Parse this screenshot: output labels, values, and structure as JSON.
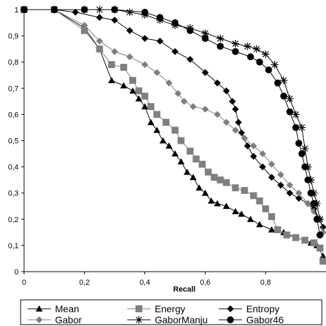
{
  "chart_data": {
    "type": "line",
    "title": "",
    "xlabel": "Recall",
    "ylabel": "",
    "xlim": [
      0,
      1
    ],
    "ylim": [
      0,
      1
    ],
    "x_tick_labels": [
      "0",
      "0,2",
      "0,4",
      "0,6",
      "0,8"
    ],
    "x_tick_values": [
      0,
      0.2,
      0.4,
      0.6,
      0.8
    ],
    "y_tick_labels": [
      "0",
      "0,1",
      "0,2",
      "0,3",
      "0,4",
      "0,5",
      "0,6",
      "0,7",
      "0,8",
      "0,9",
      "1"
    ],
    "y_tick_values": [
      0,
      0.1,
      0.2,
      0.3,
      0.4,
      0.5,
      0.6,
      0.7,
      0.8,
      0.9,
      1.0
    ],
    "grid": false,
    "legend_position": "bottom",
    "series": [
      {
        "name": "Mean",
        "marker": "triangle",
        "color": "#000000",
        "points": [
          [
            0,
            1
          ],
          [
            0.1,
            1
          ],
          [
            0.2,
            0.93
          ],
          [
            0.25,
            0.85
          ],
          [
            0.29,
            0.73
          ],
          [
            0.33,
            0.71
          ],
          [
            0.36,
            0.69
          ],
          [
            0.38,
            0.66
          ],
          [
            0.4,
            0.63
          ],
          [
            0.42,
            0.57
          ],
          [
            0.44,
            0.54
          ],
          [
            0.46,
            0.5
          ],
          [
            0.48,
            0.48
          ],
          [
            0.5,
            0.45
          ],
          [
            0.52,
            0.42
          ],
          [
            0.54,
            0.38
          ],
          [
            0.56,
            0.36
          ],
          [
            0.58,
            0.32
          ],
          [
            0.6,
            0.3
          ],
          [
            0.62,
            0.27
          ],
          [
            0.64,
            0.26
          ],
          [
            0.67,
            0.25
          ],
          [
            0.7,
            0.23
          ],
          [
            0.72,
            0.22
          ],
          [
            0.75,
            0.2
          ],
          [
            0.78,
            0.18
          ],
          [
            0.82,
            0.16
          ],
          [
            0.86,
            0.15
          ],
          [
            0.9,
            0.13
          ],
          [
            0.93,
            0.12
          ],
          [
            0.95,
            0.11
          ],
          [
            0.97,
            0.1
          ],
          [
            0.99,
            0.06
          ]
        ]
      },
      {
        "name": "Energy",
        "marker": "square",
        "color": "#7f7f7f",
        "points": [
          [
            0,
            1
          ],
          [
            0.1,
            1
          ],
          [
            0.2,
            0.92
          ],
          [
            0.25,
            0.85
          ],
          [
            0.29,
            0.79
          ],
          [
            0.33,
            0.78
          ],
          [
            0.36,
            0.73
          ],
          [
            0.38,
            0.69
          ],
          [
            0.4,
            0.67
          ],
          [
            0.42,
            0.63
          ],
          [
            0.44,
            0.6
          ],
          [
            0.47,
            0.57
          ],
          [
            0.5,
            0.54
          ],
          [
            0.52,
            0.5
          ],
          [
            0.55,
            0.46
          ],
          [
            0.57,
            0.43
          ],
          [
            0.59,
            0.41
          ],
          [
            0.61,
            0.38
          ],
          [
            0.63,
            0.36
          ],
          [
            0.65,
            0.35
          ],
          [
            0.67,
            0.34
          ],
          [
            0.7,
            0.32
          ],
          [
            0.73,
            0.31
          ],
          [
            0.76,
            0.29
          ],
          [
            0.78,
            0.27
          ],
          [
            0.8,
            0.24
          ],
          [
            0.82,
            0.21
          ],
          [
            0.84,
            0.16
          ],
          [
            0.87,
            0.14
          ],
          [
            0.9,
            0.13
          ],
          [
            0.93,
            0.12
          ],
          [
            0.96,
            0.11
          ],
          [
            0.98,
            0.09
          ],
          [
            0.99,
            0.04
          ]
        ]
      },
      {
        "name": "Entropy",
        "marker": "diamond",
        "color": "#000000",
        "points": [
          [
            0,
            1
          ],
          [
            0.1,
            1
          ],
          [
            0.17,
            0.99
          ],
          [
            0.25,
            0.97
          ],
          [
            0.3,
            0.96
          ],
          [
            0.35,
            0.92
          ],
          [
            0.4,
            0.89
          ],
          [
            0.45,
            0.88
          ],
          [
            0.5,
            0.84
          ],
          [
            0.55,
            0.81
          ],
          [
            0.6,
            0.76
          ],
          [
            0.64,
            0.72
          ],
          [
            0.67,
            0.69
          ],
          [
            0.69,
            0.65
          ],
          [
            0.7,
            0.62
          ],
          [
            0.71,
            0.57
          ],
          [
            0.72,
            0.53
          ],
          [
            0.74,
            0.48
          ],
          [
            0.76,
            0.44
          ],
          [
            0.79,
            0.4
          ],
          [
            0.82,
            0.36
          ],
          [
            0.85,
            0.33
          ],
          [
            0.88,
            0.3
          ],
          [
            0.91,
            0.28
          ],
          [
            0.94,
            0.26
          ],
          [
            0.96,
            0.24
          ],
          [
            0.98,
            0.2
          ],
          [
            0.99,
            0.17
          ]
        ]
      },
      {
        "name": "Gabor",
        "marker": "diamond",
        "color": "#7f7f7f",
        "points": [
          [
            0,
            1
          ],
          [
            0.1,
            1
          ],
          [
            0.2,
            0.94
          ],
          [
            0.25,
            0.88
          ],
          [
            0.3,
            0.84
          ],
          [
            0.35,
            0.82
          ],
          [
            0.4,
            0.79
          ],
          [
            0.44,
            0.76
          ],
          [
            0.48,
            0.72
          ],
          [
            0.51,
            0.68
          ],
          [
            0.53,
            0.65
          ],
          [
            0.56,
            0.63
          ],
          [
            0.6,
            0.62
          ],
          [
            0.64,
            0.6
          ],
          [
            0.67,
            0.57
          ],
          [
            0.7,
            0.54
          ],
          [
            0.73,
            0.51
          ],
          [
            0.76,
            0.48
          ],
          [
            0.79,
            0.45
          ],
          [
            0.82,
            0.41
          ],
          [
            0.85,
            0.37
          ],
          [
            0.88,
            0.33
          ],
          [
            0.91,
            0.3
          ],
          [
            0.94,
            0.26
          ],
          [
            0.96,
            0.23
          ],
          [
            0.98,
            0.2
          ],
          [
            0.99,
            0.15
          ]
        ]
      },
      {
        "name": "GaborManju",
        "marker": "star",
        "color": "#000000",
        "points": [
          [
            0,
            1
          ],
          [
            0.1,
            1
          ],
          [
            0.2,
            1
          ],
          [
            0.25,
            1
          ],
          [
            0.3,
            1
          ],
          [
            0.35,
            0.99
          ],
          [
            0.4,
            0.98
          ],
          [
            0.45,
            0.96
          ],
          [
            0.5,
            0.94
          ],
          [
            0.55,
            0.93
          ],
          [
            0.6,
            0.91
          ],
          [
            0.65,
            0.89
          ],
          [
            0.7,
            0.87
          ],
          [
            0.74,
            0.86
          ],
          [
            0.77,
            0.85
          ],
          [
            0.8,
            0.83
          ],
          [
            0.83,
            0.79
          ],
          [
            0.86,
            0.73
          ],
          [
            0.88,
            0.66
          ],
          [
            0.9,
            0.6
          ],
          [
            0.92,
            0.55
          ],
          [
            0.93,
            0.47
          ],
          [
            0.94,
            0.4
          ],
          [
            0.95,
            0.35
          ],
          [
            0.96,
            0.3
          ],
          [
            0.97,
            0.26
          ],
          [
            0.98,
            0.2
          ]
        ]
      },
      {
        "name": "Gabor46",
        "marker": "circle",
        "color": "#000000",
        "points": [
          [
            0,
            1
          ],
          [
            0.1,
            1
          ],
          [
            0.2,
            1
          ],
          [
            0.3,
            1
          ],
          [
            0.4,
            0.99
          ],
          [
            0.45,
            0.97
          ],
          [
            0.5,
            0.95
          ],
          [
            0.55,
            0.92
          ],
          [
            0.6,
            0.89
          ],
          [
            0.65,
            0.86
          ],
          [
            0.7,
            0.84
          ],
          [
            0.75,
            0.82
          ],
          [
            0.78,
            0.8
          ],
          [
            0.81,
            0.77
          ],
          [
            0.84,
            0.72
          ],
          [
            0.86,
            0.67
          ],
          [
            0.88,
            0.61
          ],
          [
            0.9,
            0.55
          ],
          [
            0.91,
            0.49
          ],
          [
            0.92,
            0.45
          ],
          [
            0.93,
            0.4
          ],
          [
            0.94,
            0.35
          ],
          [
            0.95,
            0.3
          ],
          [
            0.96,
            0.26
          ],
          [
            0.97,
            0.2
          ],
          [
            0.98,
            0.14
          ]
        ]
      }
    ]
  }
}
